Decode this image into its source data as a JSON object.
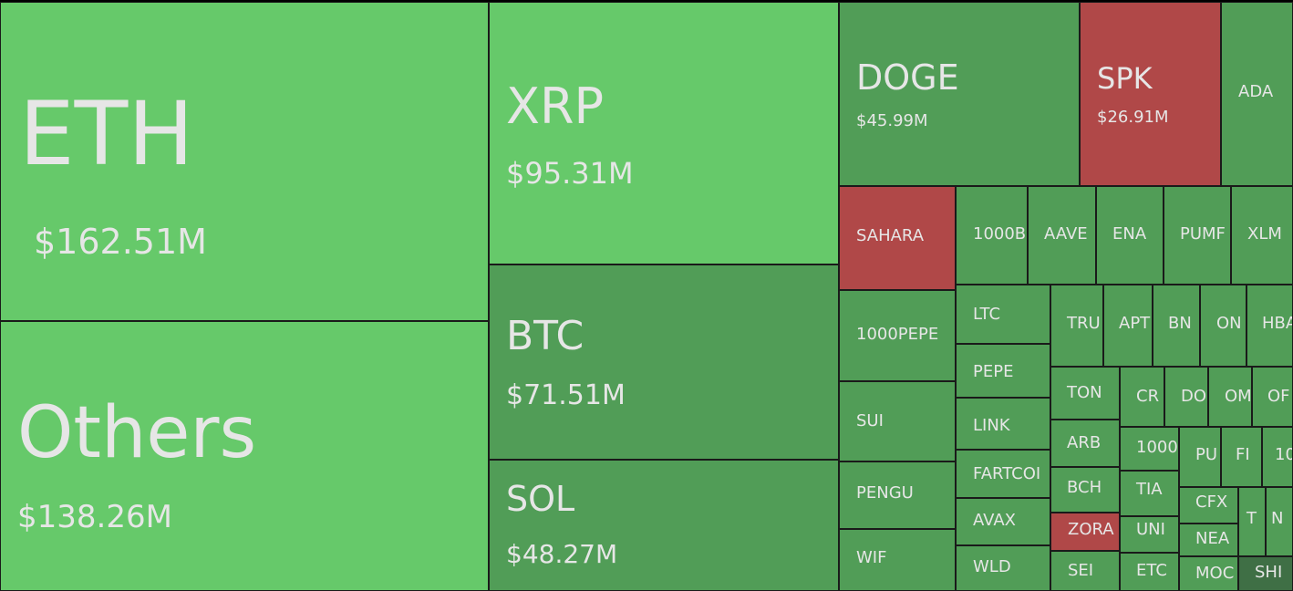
{
  "chart_data": {
    "type": "treemap",
    "colors": {
      "up_strong": "#66c96a",
      "up": "#519d57",
      "down": "#b04848",
      "neutral": "#3f6f45"
    },
    "items": [
      {
        "symbol": "ETH",
        "value": "$162.51M",
        "color": "up_strong"
      },
      {
        "symbol": "Others",
        "value": "$138.26M",
        "color": "up_strong"
      },
      {
        "symbol": "XRP",
        "value": "$95.31M",
        "color": "up_strong"
      },
      {
        "symbol": "BTC",
        "value": "$71.51M",
        "color": "up"
      },
      {
        "symbol": "SOL",
        "value": "$48.27M",
        "color": "up"
      },
      {
        "symbol": "DOGE",
        "value": "$45.99M",
        "color": "up"
      },
      {
        "symbol": "SPK",
        "value": "$26.91M",
        "color": "down"
      },
      {
        "symbol": "ADA",
        "color": "up"
      },
      {
        "symbol": "SAHARA",
        "color": "down"
      },
      {
        "symbol": "1000B",
        "color": "up"
      },
      {
        "symbol": "AAVE",
        "color": "up"
      },
      {
        "symbol": "ENA",
        "color": "up"
      },
      {
        "symbol": "PUMF",
        "color": "up"
      },
      {
        "symbol": "XLM",
        "color": "up"
      },
      {
        "symbol": "1000PEPE",
        "color": "up"
      },
      {
        "symbol": "LTC",
        "color": "up"
      },
      {
        "symbol": "TRU",
        "color": "up"
      },
      {
        "symbol": "APT",
        "color": "up"
      },
      {
        "symbol": "BN",
        "color": "up"
      },
      {
        "symbol": "ON",
        "color": "up"
      },
      {
        "symbol": "HBA",
        "color": "up"
      },
      {
        "symbol": "PEPE",
        "color": "up"
      },
      {
        "symbol": "TON",
        "color": "up"
      },
      {
        "symbol": "CR",
        "color": "up"
      },
      {
        "symbol": "DO",
        "color": "up"
      },
      {
        "symbol": "OM",
        "color": "up"
      },
      {
        "symbol": "OF",
        "color": "up"
      },
      {
        "symbol": "SUI",
        "color": "up"
      },
      {
        "symbol": "LINK",
        "color": "up"
      },
      {
        "symbol": "ARB",
        "color": "up"
      },
      {
        "symbol": "1000",
        "color": "up"
      },
      {
        "symbol": "PU",
        "color": "up"
      },
      {
        "symbol": "FI",
        "color": "up"
      },
      {
        "symbol": "10",
        "color": "up"
      },
      {
        "symbol": "FARTCOI",
        "color": "up"
      },
      {
        "symbol": "BCH",
        "color": "up"
      },
      {
        "symbol": "TIA",
        "color": "up"
      },
      {
        "symbol": "CFX",
        "color": "up"
      },
      {
        "symbol": "T",
        "color": "up"
      },
      {
        "symbol": "N",
        "color": "up"
      },
      {
        "symbol": "PENGU",
        "color": "up"
      },
      {
        "symbol": "AVAX",
        "color": "up"
      },
      {
        "symbol": "ZORA",
        "color": "down"
      },
      {
        "symbol": "UNI",
        "color": "up"
      },
      {
        "symbol": "NEA",
        "color": "up"
      },
      {
        "symbol": "WIF",
        "color": "up"
      },
      {
        "symbol": "WLD",
        "color": "up"
      },
      {
        "symbol": "SEI",
        "color": "up"
      },
      {
        "symbol": "ETC",
        "color": "up"
      },
      {
        "symbol": "MOC",
        "color": "up"
      },
      {
        "symbol": "SHI",
        "color": "neutral"
      }
    ]
  }
}
